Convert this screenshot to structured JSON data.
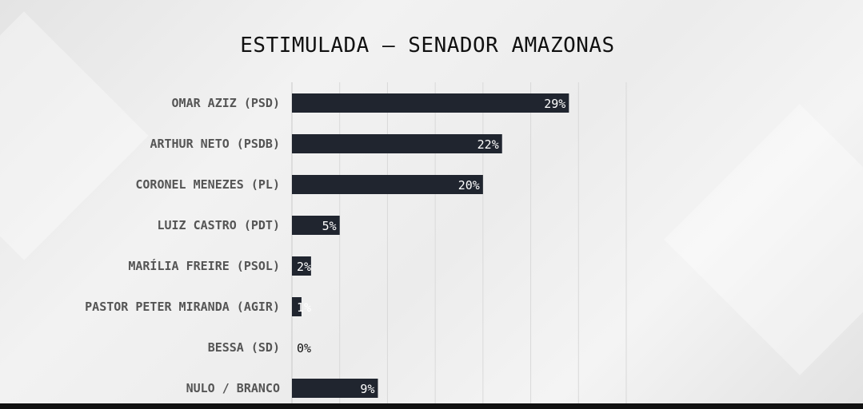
{
  "chart_data": {
    "type": "bar",
    "orientation": "horizontal",
    "title": "ESTIMULADA – SENADOR AMAZONAS",
    "categories": [
      "OMAR AZIZ (PSD)",
      "ARTHUR NETO (PSDB)",
      "CORONEL MENEZES (PL)",
      "LUIZ CASTRO (PDT)",
      "MARÍLIA FREIRE (PSOL)",
      "PASTOR PETER MIRANDA (AGIR)",
      "BESSA (SD)",
      "NULO / BRANCO"
    ],
    "values": [
      29,
      22,
      20,
      5,
      2,
      1,
      0,
      9
    ],
    "value_labels": [
      "29%",
      "22%",
      "20%",
      "5%",
      "2%",
      "1%",
      "0%",
      "9%"
    ],
    "xlabel": "",
    "ylabel": "",
    "xlim": [
      0,
      35
    ],
    "grid": true,
    "bar_color": "#20252f"
  }
}
